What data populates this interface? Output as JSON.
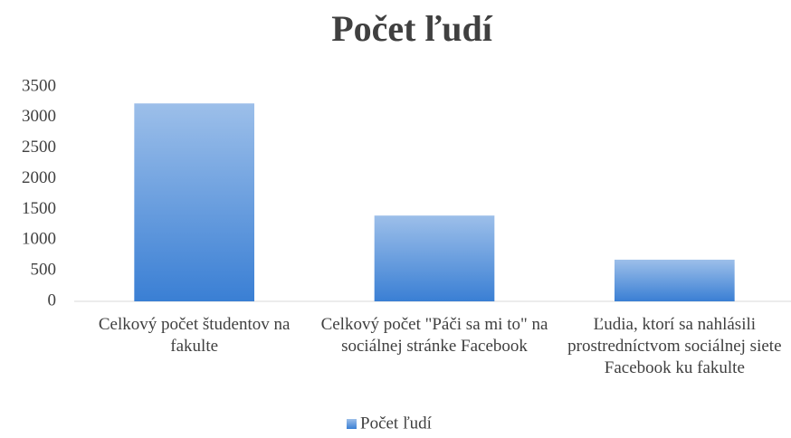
{
  "chart_data": {
    "type": "bar",
    "title": "Počet ľudí",
    "categories": [
      "Celkový počet študentov na fakulte",
      "Celkový počet \"Páči sa mi to\" na sociálnej stránke Facebook",
      "Ľudia, ktorí sa nahlásili prostredníctvom sociálnej siete Facebook ku fakulte"
    ],
    "series": [
      {
        "name": "Počet ľudí",
        "color": "#3a7fd4",
        "values": [
          3230,
          1400,
          680
        ]
      }
    ],
    "ylim": [
      0,
      3500
    ],
    "yticks": [
      0,
      500,
      1000,
      1500,
      2000,
      2500,
      3000,
      3500
    ],
    "grid": false,
    "legend": "bottom"
  }
}
